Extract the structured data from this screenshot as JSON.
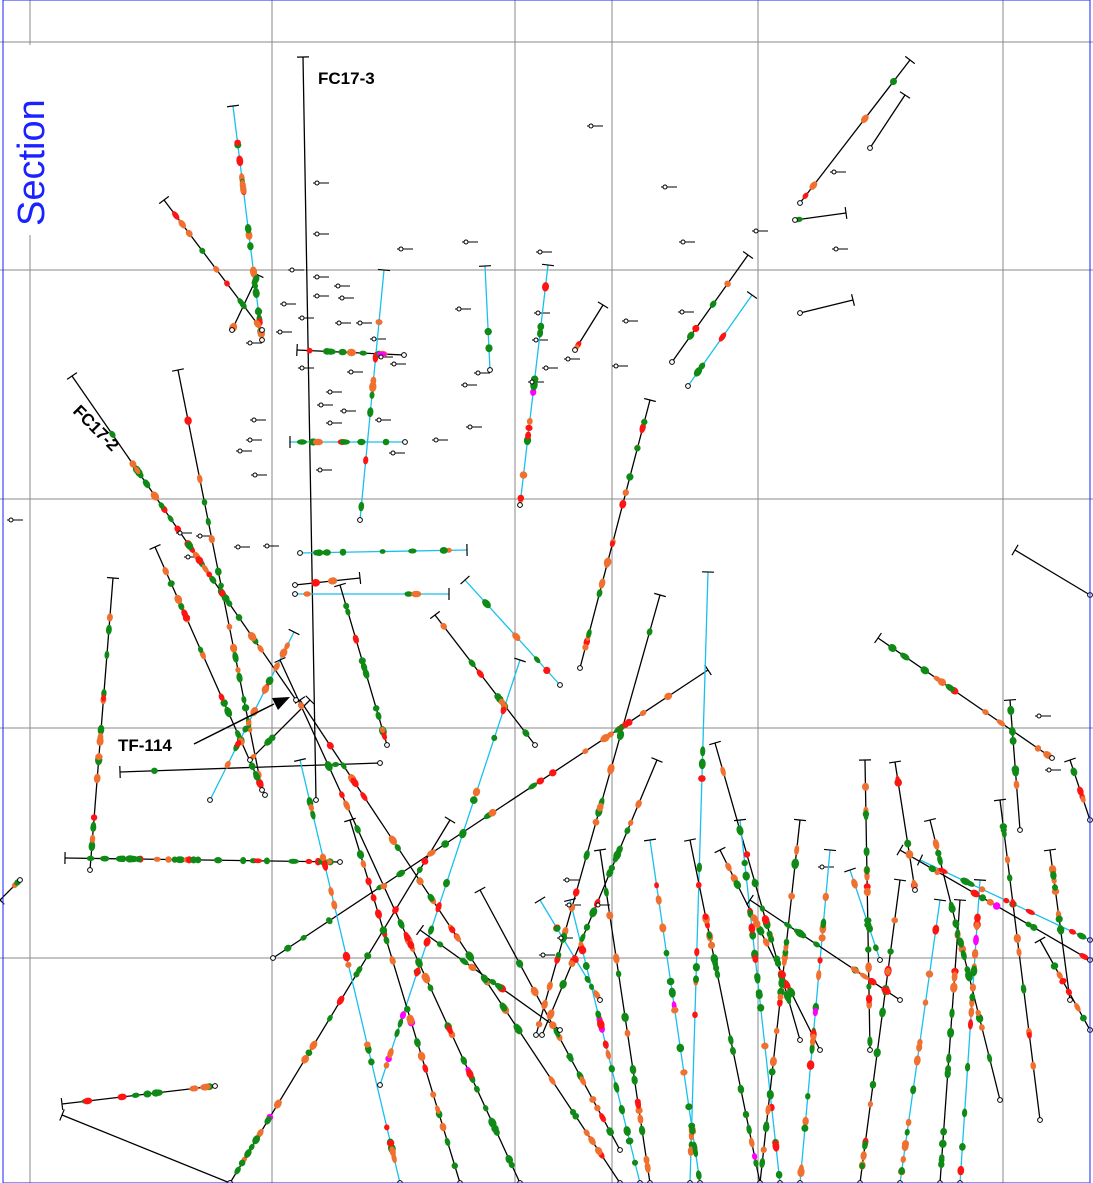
{
  "title": "Section",
  "labels": {
    "fc17_3": "FC17-3",
    "fc17_2": "FC17-2",
    "tf_114": "TF-114"
  },
  "colors": {
    "grid": "#8a8a8a",
    "border": "#1a22ff",
    "trace_black": "#000000",
    "trace_cyan": "#18c0ee",
    "assay_green": "#0f8a16",
    "assay_orange": "#f07030",
    "assay_red": "#ff1414",
    "assay_magenta": "#ff00ff"
  },
  "legend": []
}
